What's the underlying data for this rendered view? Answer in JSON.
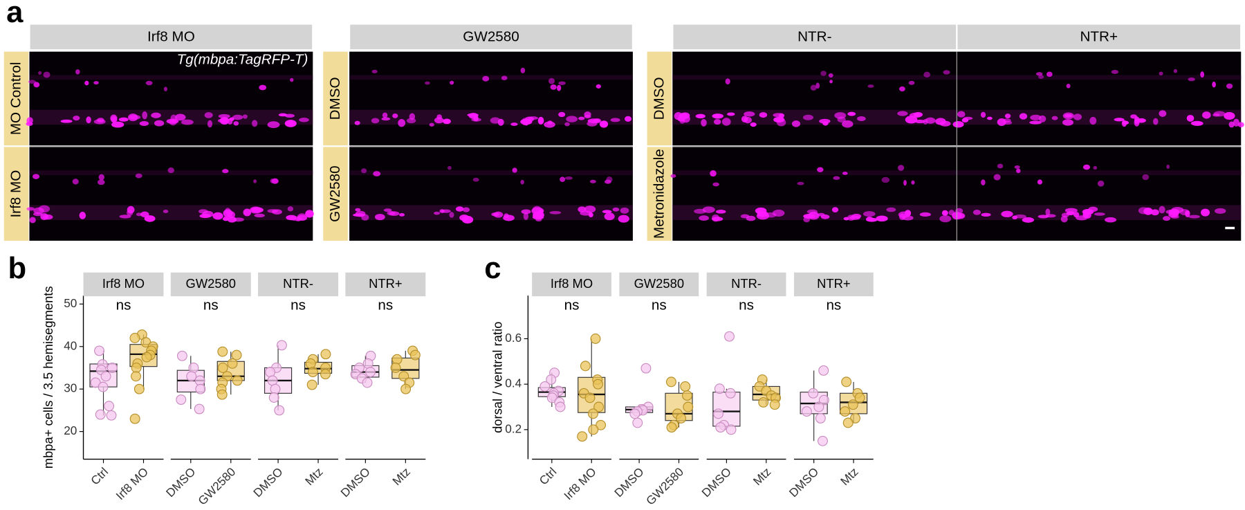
{
  "panel_a": {
    "label": "a",
    "annotation": "Tg(mbpa:TagRFP-T)",
    "groups": [
      {
        "columns": [
          "Irf8 MO"
        ],
        "rows": [
          "MO Control",
          "Irf8 MO"
        ]
      },
      {
        "columns": [
          "GW2580"
        ],
        "rows": [
          "DMSO",
          "GW2580"
        ]
      },
      {
        "columns": [
          "NTR-",
          "NTR+"
        ],
        "rows": [
          "DMSO",
          "Metronidazole"
        ]
      }
    ]
  },
  "chart_data": [
    {
      "type": "box",
      "panel_label": "b",
      "ylabel": "mbpa+ cells / 3.5 hemisegments",
      "ylim": [
        13.5,
        52
      ],
      "yticks": [
        20,
        30,
        40,
        50
      ],
      "facets": [
        {
          "name": "Irf8 MO",
          "annotation": "ns",
          "groups": [
            {
              "category": "Ctrl",
              "color": "#f6c8ef",
              "edge": "#c98cc0",
              "q1": 30.5,
              "median": 34.2,
              "q3": 35.9,
              "whisker_low": 23.8,
              "whisker_high": 39,
              "points": [
                39,
                35.8,
                35,
                34.5,
                33,
                31.5,
                30.5,
                26,
                24,
                23.8
              ]
            },
            {
              "category": "Irf8 MO",
              "color": "#e9c35a",
              "edge": "#b58f2a",
              "q1": 35.3,
              "median": 38.2,
              "q3": 40.5,
              "whisker_low": 29.9,
              "whisker_high": 42.8,
              "points": [
                42.8,
                42,
                41,
                40,
                39,
                38,
                37.5,
                36,
                35,
                33,
                30,
                23
              ]
            }
          ]
        },
        {
          "name": "GW2580",
          "annotation": "ns",
          "groups": [
            {
              "category": "DMSO",
              "color": "#f6c8ef",
              "edge": "#c98cc0",
              "q1": 29.3,
              "median": 32,
              "q3": 34.4,
              "whisker_low": 25.3,
              "whisker_high": 37.8,
              "points": [
                37.8,
                35,
                33,
                32,
                30,
                27.5,
                25.3
              ]
            },
            {
              "category": "GW2580",
              "color": "#e9c35a",
              "edge": "#b58f2a",
              "q1": 32,
              "median": 33,
              "q3": 36.5,
              "whisker_low": 28.7,
              "whisker_high": 38.8,
              "points": [
                38.8,
                38,
                36,
                35,
                33,
                32,
                31.5,
                30,
                28.7
              ]
            }
          ]
        },
        {
          "name": "NTR-",
          "annotation": "ns",
          "groups": [
            {
              "category": "DMSO",
              "color": "#f6c8ef",
              "edge": "#c98cc0",
              "q1": 29,
              "median": 32,
              "q3": 35,
              "whisker_low": 25,
              "whisker_high": 40.3,
              "points": [
                40.3,
                35,
                34,
                32,
                30,
                28,
                25
              ]
            },
            {
              "category": "Mtz",
              "color": "#e9c35a",
              "edge": "#b58f2a",
              "q1": 33.7,
              "median": 34.8,
              "q3": 36.3,
              "whisker_low": 31,
              "whisker_high": 38.2,
              "points": [
                38.2,
                37,
                36,
                35,
                34,
                33.5,
                31
              ]
            }
          ]
        },
        {
          "name": "NTR+",
          "annotation": "ns",
          "groups": [
            {
              "category": "DMSO",
              "color": "#f6c8ef",
              "edge": "#c98cc0",
              "q1": 32.8,
              "median": 34,
              "q3": 35.5,
              "whisker_low": 31.5,
              "whisker_high": 37.8,
              "points": [
                37.8,
                36,
                35,
                34,
                33.5,
                32.5,
                31.5
              ]
            },
            {
              "category": "Mtz",
              "color": "#e9c35a",
              "edge": "#b58f2a",
              "q1": 32.5,
              "median": 34.5,
              "q3": 37.3,
              "whisker_low": 30,
              "whisker_high": 39,
              "points": [
                39,
                38,
                37,
                35,
                33,
                31.5,
                30
              ]
            }
          ]
        }
      ]
    },
    {
      "type": "box",
      "panel_label": "c",
      "ylabel": "dorsal / ventral ratio",
      "ylim": [
        0.07,
        0.79
      ],
      "yticks": [
        0.2,
        0.4,
        0.6
      ],
      "facets": [
        {
          "name": "Irf8 MO",
          "annotation": "ns",
          "groups": [
            {
              "category": "Ctrl",
              "color": "#f6c8ef",
              "edge": "#c98cc0",
              "q1": 0.345,
              "median": 0.365,
              "q3": 0.385,
              "whisker_low": 0.3,
              "whisker_high": 0.45,
              "points": [
                0.45,
                0.42,
                0.39,
                0.37,
                0.36,
                0.35,
                0.34,
                0.32,
                0.3
              ]
            },
            {
              "category": "Irf8 MO",
              "color": "#e9c35a",
              "edge": "#b58f2a",
              "q1": 0.275,
              "median": 0.355,
              "q3": 0.43,
              "whisker_low": 0.17,
              "whisker_high": 0.6,
              "points": [
                0.6,
                0.48,
                0.42,
                0.4,
                0.36,
                0.34,
                0.3,
                0.27,
                0.22,
                0.2,
                0.17
              ]
            }
          ]
        },
        {
          "name": "GW2580",
          "annotation": "ns",
          "groups": [
            {
              "category": "DMSO",
              "color": "#f6c8ef",
              "edge": "#c98cc0",
              "q1": 0.275,
              "median": 0.288,
              "q3": 0.3,
              "whisker_low": 0.27,
              "whisker_high": 0.31,
              "points": [
                0.47,
                0.3,
                0.29,
                0.285,
                0.28,
                0.27,
                0.23
              ]
            },
            {
              "category": "GW2580",
              "color": "#e9c35a",
              "edge": "#b58f2a",
              "q1": 0.24,
              "median": 0.27,
              "q3": 0.36,
              "whisker_low": 0.21,
              "whisker_high": 0.41,
              "points": [
                0.41,
                0.39,
                0.35,
                0.3,
                0.27,
                0.25,
                0.22,
                0.21
              ]
            }
          ]
        },
        {
          "name": "NTR-",
          "annotation": "ns",
          "groups": [
            {
              "category": "DMSO",
              "color": "#f6c8ef",
              "edge": "#c98cc0",
              "q1": 0.215,
              "median": 0.28,
              "q3": 0.365,
              "whisker_low": 0.2,
              "whisker_high": 0.38,
              "points": [
                0.61,
                0.38,
                0.36,
                0.27,
                0.22,
                0.21,
                0.2
              ]
            },
            {
              "category": "Mtz",
              "color": "#e9c35a",
              "edge": "#b58f2a",
              "q1": 0.33,
              "median": 0.355,
              "q3": 0.39,
              "whisker_low": 0.31,
              "whisker_high": 0.42,
              "points": [
                0.42,
                0.39,
                0.37,
                0.35,
                0.34,
                0.32,
                0.31
              ]
            }
          ]
        },
        {
          "name": "NTR+",
          "annotation": "ns",
          "groups": [
            {
              "category": "DMSO",
              "color": "#f6c8ef",
              "edge": "#c98cc0",
              "q1": 0.27,
              "median": 0.315,
              "q3": 0.365,
              "whisker_low": 0.15,
              "whisker_high": 0.46,
              "points": [
                0.46,
                0.36,
                0.33,
                0.3,
                0.28,
                0.25,
                0.15
              ]
            },
            {
              "category": "Mtz",
              "color": "#e9c35a",
              "edge": "#b58f2a",
              "q1": 0.27,
              "median": 0.32,
              "q3": 0.36,
              "whisker_low": 0.23,
              "whisker_high": 0.41,
              "points": [
                0.41,
                0.36,
                0.34,
                0.31,
                0.28,
                0.25,
                0.23
              ]
            }
          ]
        }
      ]
    }
  ]
}
